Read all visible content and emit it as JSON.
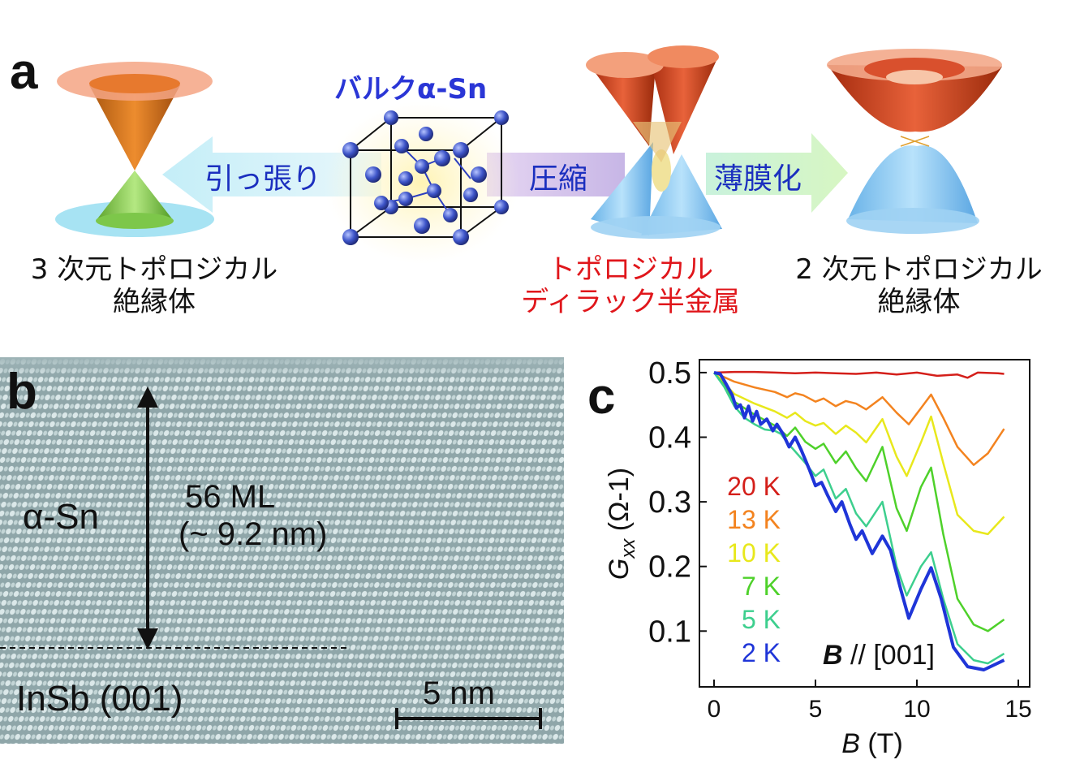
{
  "panel_a": {
    "letter": "a",
    "left_caption": {
      "line1": "3 次元トポロジカル",
      "line2": "絶縁体"
    },
    "center_title": "バルクα-Sn",
    "arrow_tension": "引っ張り",
    "arrow_compression": "圧縮",
    "arrow_thin": "薄膜化",
    "mid_caption": {
      "line1": "トポロジカル",
      "line2": "ディラック半金属"
    },
    "right_caption": {
      "line1": "2 次元トポロジカル",
      "line2": "絶縁体"
    },
    "colors": {
      "arrow_text": "#1b2fbf",
      "mid_caption": "#e0161b",
      "title": "#2a36d6"
    }
  },
  "panel_b": {
    "letter": "b",
    "layer_top": "α-Sn",
    "thickness_ml": "56 ML",
    "thickness_nm": "(~ 9.2 nm)",
    "substrate": "InSb (001)",
    "scale_bar": "5 nm"
  },
  "panel_c": {
    "letter": "c",
    "chart_data": {
      "type": "line",
      "ylabel_main": "G",
      "ylabel_sub": "xx",
      "ylabel_unit": " (Ω-1)",
      "xlabel_main": "B",
      "xlabel_unit": " (T)",
      "xlim": [
        0,
        15
      ],
      "ylim": [
        0.03,
        0.52
      ],
      "xticks": [
        0,
        5,
        10,
        15
      ],
      "yticks": [
        0.1,
        0.2,
        0.3,
        0.4,
        0.5
      ],
      "xtick_labels": [
        "0",
        "5",
        "10",
        "15"
      ],
      "ytick_labels": [
        "0.1",
        "0.2",
        "0.3",
        "0.4",
        "0.5"
      ],
      "annotation_b": "B",
      "annotation_rest": " // [001]",
      "series": [
        {
          "name": "20 K",
          "color": "#d41f1a",
          "width": 2.5,
          "points": [
            [
              0,
              0.5
            ],
            [
              1,
              0.501
            ],
            [
              2,
              0.501
            ],
            [
              3,
              0.5
            ],
            [
              4,
              0.499
            ],
            [
              5,
              0.5
            ],
            [
              6,
              0.499
            ],
            [
              7,
              0.498
            ],
            [
              8,
              0.5
            ],
            [
              9,
              0.497
            ],
            [
              10,
              0.5
            ],
            [
              11,
              0.495
            ],
            [
              12,
              0.497
            ],
            [
              12.5,
              0.492
            ],
            [
              13,
              0.5
            ],
            [
              14,
              0.499
            ],
            [
              14.3,
              0.498
            ]
          ]
        },
        {
          "name": "13 K",
          "color": "#f3831f",
          "width": 2.5,
          "points": [
            [
              0,
              0.5
            ],
            [
              0.5,
              0.493
            ],
            [
              1,
              0.486
            ],
            [
              2,
              0.477
            ],
            [
              3,
              0.47
            ],
            [
              3.6,
              0.462
            ],
            [
              4,
              0.468
            ],
            [
              4.4,
              0.465
            ],
            [
              5,
              0.455
            ],
            [
              5.4,
              0.46
            ],
            [
              6,
              0.448
            ],
            [
              6.5,
              0.456
            ],
            [
              7,
              0.452
            ],
            [
              7.5,
              0.443
            ],
            [
              8.3,
              0.462
            ],
            [
              9,
              0.438
            ],
            [
              9.6,
              0.42
            ],
            [
              10.2,
              0.445
            ],
            [
              10.7,
              0.466
            ],
            [
              11.3,
              0.43
            ],
            [
              12,
              0.385
            ],
            [
              12.8,
              0.357
            ],
            [
              13.5,
              0.375
            ],
            [
              14.3,
              0.413
            ]
          ]
        },
        {
          "name": "10 K",
          "color": "#e8e81c",
          "width": 2.5,
          "points": [
            [
              0,
              0.5
            ],
            [
              0.5,
              0.484
            ],
            [
              1,
              0.467
            ],
            [
              2,
              0.452
            ],
            [
              3,
              0.44
            ],
            [
              3.6,
              0.43
            ],
            [
              4,
              0.438
            ],
            [
              4.5,
              0.425
            ],
            [
              5,
              0.418
            ],
            [
              5.4,
              0.422
            ],
            [
              6,
              0.405
            ],
            [
              6.5,
              0.418
            ],
            [
              7,
              0.407
            ],
            [
              7.5,
              0.392
            ],
            [
              8.3,
              0.428
            ],
            [
              9,
              0.37
            ],
            [
              9.5,
              0.34
            ],
            [
              10.2,
              0.392
            ],
            [
              10.7,
              0.432
            ],
            [
              11.3,
              0.36
            ],
            [
              12,
              0.28
            ],
            [
              12.8,
              0.255
            ],
            [
              13.5,
              0.25
            ],
            [
              14.3,
              0.277
            ]
          ]
        },
        {
          "name": "7 K",
          "color": "#4ed12a",
          "width": 2.5,
          "points": [
            [
              0,
              0.5
            ],
            [
              0.5,
              0.48
            ],
            [
              1,
              0.455
            ],
            [
              2,
              0.435
            ],
            [
              3,
              0.418
            ],
            [
              3.6,
              0.402
            ],
            [
              4,
              0.415
            ],
            [
              4.5,
              0.393
            ],
            [
              5,
              0.382
            ],
            [
              5.4,
              0.39
            ],
            [
              6,
              0.36
            ],
            [
              6.5,
              0.378
            ],
            [
              7,
              0.352
            ],
            [
              7.5,
              0.332
            ],
            [
              8.3,
              0.385
            ],
            [
              9,
              0.29
            ],
            [
              9.5,
              0.255
            ],
            [
              10.2,
              0.323
            ],
            [
              10.7,
              0.353
            ],
            [
              11.3,
              0.25
            ],
            [
              12,
              0.15
            ],
            [
              12.8,
              0.11
            ],
            [
              13.5,
              0.1
            ],
            [
              14.3,
              0.118
            ]
          ]
        },
        {
          "name": "5 K",
          "color": "#3dcf8e",
          "width": 2.5,
          "points": [
            [
              0,
              0.5
            ],
            [
              0.5,
              0.478
            ],
            [
              1,
              0.448
            ],
            [
              1.5,
              0.43
            ],
            [
              2,
              0.42
            ],
            [
              2.5,
              0.412
            ],
            [
              3,
              0.41
            ],
            [
              3.3,
              0.405
            ],
            [
              3.6,
              0.392
            ],
            [
              4,
              0.378
            ],
            [
              4.5,
              0.36
            ],
            [
              5,
              0.34
            ],
            [
              5.4,
              0.35
            ],
            [
              6,
              0.305
            ],
            [
              6.5,
              0.32
            ],
            [
              7,
              0.282
            ],
            [
              7.5,
              0.262
            ],
            [
              8.3,
              0.3
            ],
            [
              9,
              0.2
            ],
            [
              9.5,
              0.155
            ],
            [
              10.2,
              0.2
            ],
            [
              10.7,
              0.222
            ],
            [
              11.3,
              0.15
            ],
            [
              12,
              0.08
            ],
            [
              12.8,
              0.055
            ],
            [
              13.5,
              0.05
            ],
            [
              14.3,
              0.065
            ]
          ]
        },
        {
          "name": "2 K",
          "color": "#1f35d8",
          "width": 4,
          "points": [
            [
              0,
              0.5
            ],
            [
              0.3,
              0.498
            ],
            [
              0.6,
              0.482
            ],
            [
              0.9,
              0.465
            ],
            [
              1.1,
              0.445
            ],
            [
              1.3,
              0.45
            ],
            [
              1.5,
              0.43
            ],
            [
              1.7,
              0.448
            ],
            [
              1.9,
              0.425
            ],
            [
              2.1,
              0.44
            ],
            [
              2.3,
              0.42
            ],
            [
              2.6,
              0.428
            ],
            [
              2.9,
              0.41
            ],
            [
              3.1,
              0.42
            ],
            [
              3.4,
              0.405
            ],
            [
              3.7,
              0.385
            ],
            [
              4.0,
              0.4
            ],
            [
              4.3,
              0.38
            ],
            [
              4.7,
              0.35
            ],
            [
              5.0,
              0.325
            ],
            [
              5.3,
              0.33
            ],
            [
              5.6,
              0.31
            ],
            [
              6.0,
              0.285
            ],
            [
              6.3,
              0.3
            ],
            [
              6.7,
              0.265
            ],
            [
              7.0,
              0.242
            ],
            [
              7.3,
              0.255
            ],
            [
              7.8,
              0.22
            ],
            [
              8.3,
              0.247
            ],
            [
              8.7,
              0.225
            ],
            [
              9.2,
              0.165
            ],
            [
              9.6,
              0.12
            ],
            [
              10.2,
              0.165
            ],
            [
              10.7,
              0.198
            ],
            [
              11.2,
              0.15
            ],
            [
              11.8,
              0.075
            ],
            [
              12.5,
              0.045
            ],
            [
              13.3,
              0.04
            ],
            [
              14.3,
              0.055
            ]
          ]
        }
      ]
    }
  }
}
